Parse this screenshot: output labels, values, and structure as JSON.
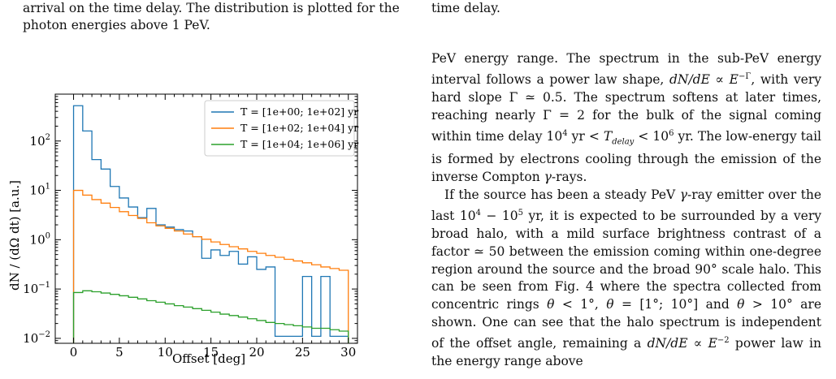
{
  "caption_left": {
    "line1": "arrival on the time delay. The distribution is plotted for the",
    "line2": "photon energies above 1 PeV."
  },
  "caption_right": {
    "line1": "time delay."
  },
  "body_paragraphs": [
    "PeV energy range. The spectrum in the sub-PeV energy interval follows a power law shape, dN/dE ∝ E^−Γ, with very hard slope Γ ≃ 0.5. The spectrum softens at later times, reaching nearly Γ = 2 for the bulk of the signal coming within time delay 10^4 yr < T_delay < 10^6 yr. The low-energy tail is formed by electrons cooling through the emission of the inverse Compton γ-rays.",
    "If the source has been a steady PeV γ-ray emitter over the last 10^4 − 10^5 yr, it is expected to be surrounded by a very broad halo, with a mild surface brightness contrast of a factor ≃ 50 between the emission coming within one-degree region around the source and the broad 90° scale halo. This can be seen from Fig. 4 where the spectra collected from concentric rings θ < 1°, θ = [1°; 10°] and θ > 10° are shown. One can see that the halo spectrum is independent of the offset angle, remaining a dN/dE ∝ E^−2 power law in the energy range above"
  ],
  "chart_data": {
    "type": "line",
    "drawstyle": "steps",
    "xlabel": "Offset [deg]",
    "ylabel": "dN / (dΩ dt) [a.u.]",
    "xlim": [
      -2,
      31
    ],
    "ylim_log10": [
      -2.1,
      2.95
    ],
    "yscale": "log",
    "x_ticks": [
      0,
      5,
      10,
      15,
      20,
      25,
      30
    ],
    "y_ticks": [
      "10^-2",
      "10^-1",
      "10^0",
      "10^1",
      "10^2"
    ],
    "legend_position": "top-right",
    "bin_edges": [
      0,
      1,
      2,
      3,
      4,
      5,
      6,
      7,
      8,
      9,
      10,
      11,
      12,
      13,
      14,
      15,
      16,
      17,
      18,
      19,
      20,
      21,
      22,
      23,
      24,
      25,
      26,
      27,
      28,
      29,
      30
    ],
    "series": [
      {
        "name": "T = [1e+00; 1e+02] yr",
        "color": "#1f77b4",
        "values": [
          520,
          160,
          42,
          27,
          12,
          7,
          4.6,
          2.8,
          4.3,
          2.0,
          1.8,
          1.6,
          1.5,
          1.15,
          0.42,
          0.62,
          0.48,
          0.58,
          0.32,
          0.45,
          0.25,
          0.28,
          0.011,
          0.011,
          0.011,
          0.18,
          0.011,
          0.18,
          0.011,
          0.011
        ]
      },
      {
        "name": "T = [1e+02; 1e+04] yr",
        "color": "#ff7f0e",
        "values": [
          10,
          8.0,
          6.5,
          5.5,
          4.5,
          3.7,
          3.1,
          2.7,
          2.2,
          1.9,
          1.7,
          1.5,
          1.3,
          1.15,
          1.02,
          0.9,
          0.8,
          0.72,
          0.65,
          0.58,
          0.53,
          0.48,
          0.44,
          0.4,
          0.37,
          0.34,
          0.31,
          0.28,
          0.26,
          0.24
        ]
      },
      {
        "name": "T = [1e+04; 1e+06] yr",
        "color": "#2ca02c",
        "values": [
          0.085,
          0.092,
          0.088,
          0.083,
          0.078,
          0.073,
          0.068,
          0.063,
          0.058,
          0.054,
          0.05,
          0.046,
          0.043,
          0.04,
          0.037,
          0.034,
          0.031,
          0.029,
          0.027,
          0.025,
          0.023,
          0.021,
          0.02,
          0.019,
          0.018,
          0.017,
          0.016,
          0.016,
          0.015,
          0.014
        ]
      }
    ]
  }
}
